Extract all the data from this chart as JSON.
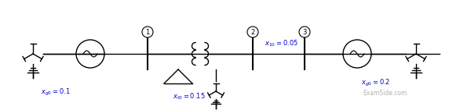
{
  "bg_color": "#ffffff",
  "line_color": "#000000",
  "label_color": "#0000cc",
  "watermark_color": "#b0b0b0",
  "fig_width": 5.86,
  "fig_height": 1.41,
  "examside_text": "ExamSide.com",
  "xg0_label1": "$x_{g0}=0.1$",
  "xg0_label2": "$x_{g0}=0.2$",
  "xt0_label": "$x_{t0}=0.15$",
  "x10_label": "$x_{10}=0.05$",
  "node1": "1",
  "node2": "2",
  "node3": "3"
}
